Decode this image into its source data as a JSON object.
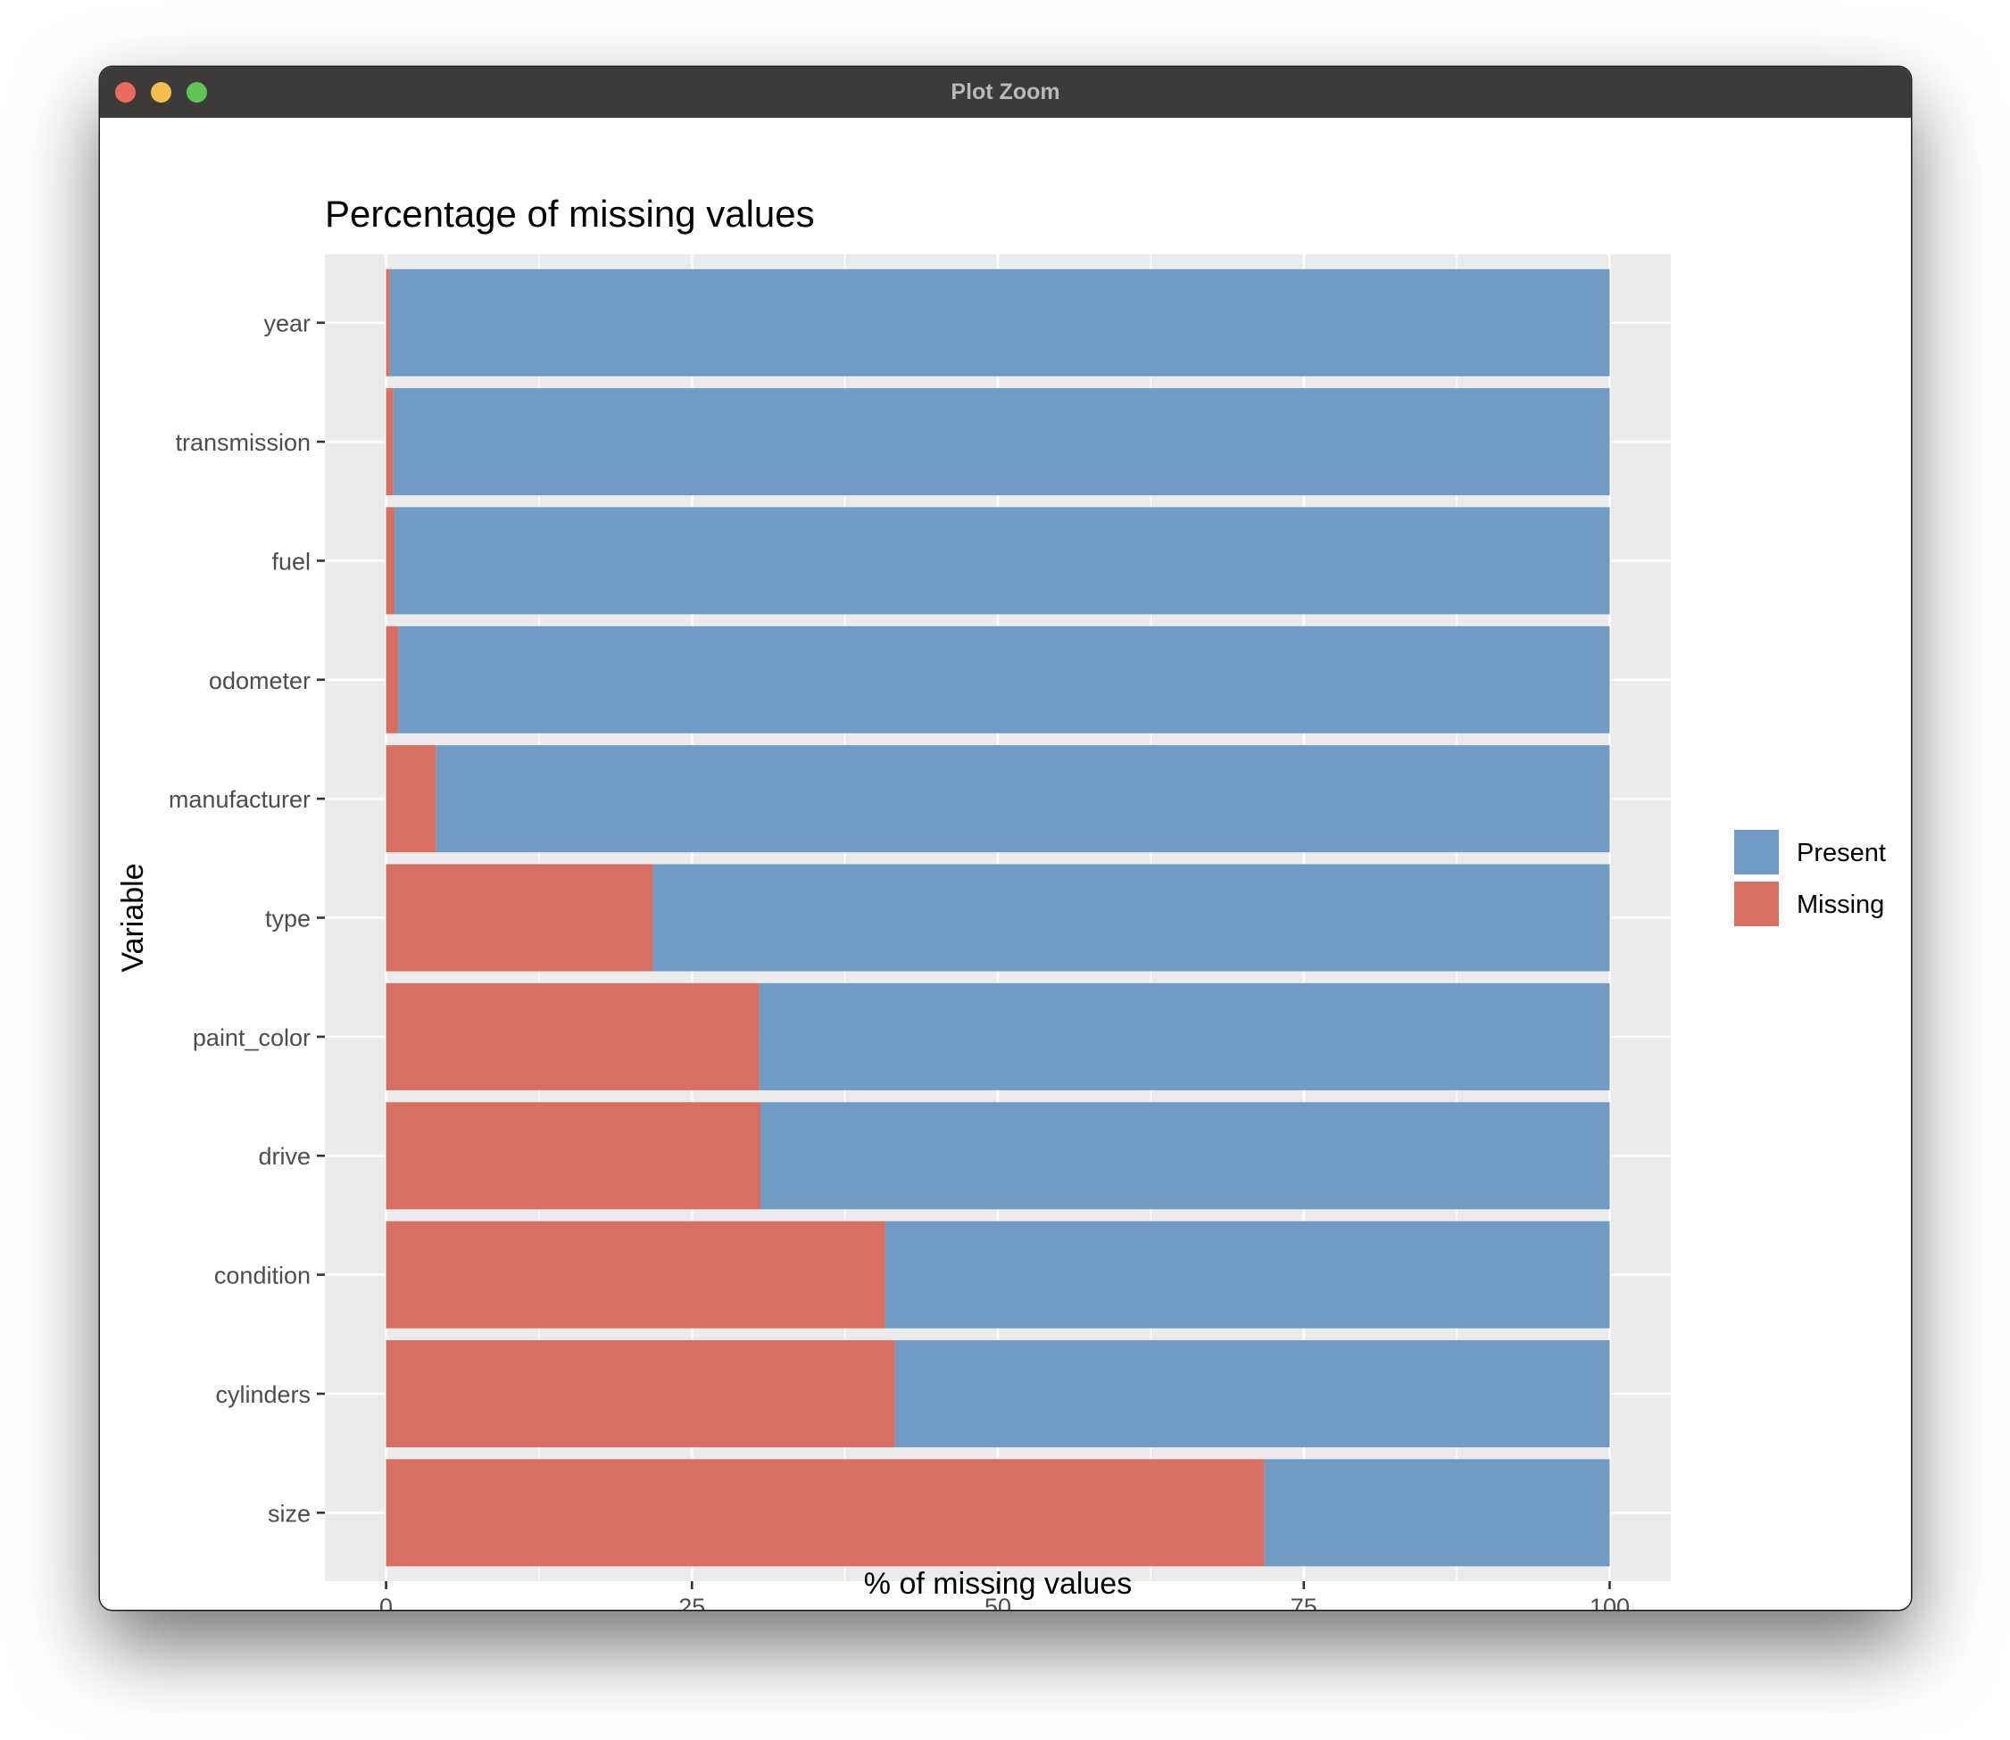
{
  "window": {
    "title": "Plot Zoom"
  },
  "colors": {
    "present": "#6f9bc4",
    "missing": "#d77062",
    "panel": "#ebebeb",
    "grid": "#ffffff"
  },
  "chart_data": {
    "type": "bar",
    "orientation": "horizontal",
    "stacked": true,
    "title": "Percentage of missing values",
    "xlabel": "% of missing values",
    "ylabel": "Variable",
    "xlim": [
      0,
      100
    ],
    "xticks": [
      "0",
      "25",
      "50",
      "75",
      "100"
    ],
    "grid": true,
    "legend_position": "right",
    "categories": [
      "year",
      "transmission",
      "fuel",
      "odometer",
      "manufacturer",
      "type",
      "paint_color",
      "drive",
      "condition",
      "cylinders",
      "size"
    ],
    "series": [
      {
        "name": "Missing",
        "values": [
          0.3,
          0.6,
          0.7,
          1.0,
          4.1,
          21.8,
          30.5,
          30.6,
          40.8,
          41.6,
          71.8
        ]
      },
      {
        "name": "Present",
        "values": [
          99.7,
          99.4,
          99.3,
          99.0,
          95.9,
          78.2,
          69.5,
          69.4,
          59.2,
          58.4,
          28.2
        ]
      }
    ],
    "legend": [
      {
        "label": "Present",
        "color_key": "present"
      },
      {
        "label": "Missing",
        "color_key": "missing"
      }
    ]
  }
}
